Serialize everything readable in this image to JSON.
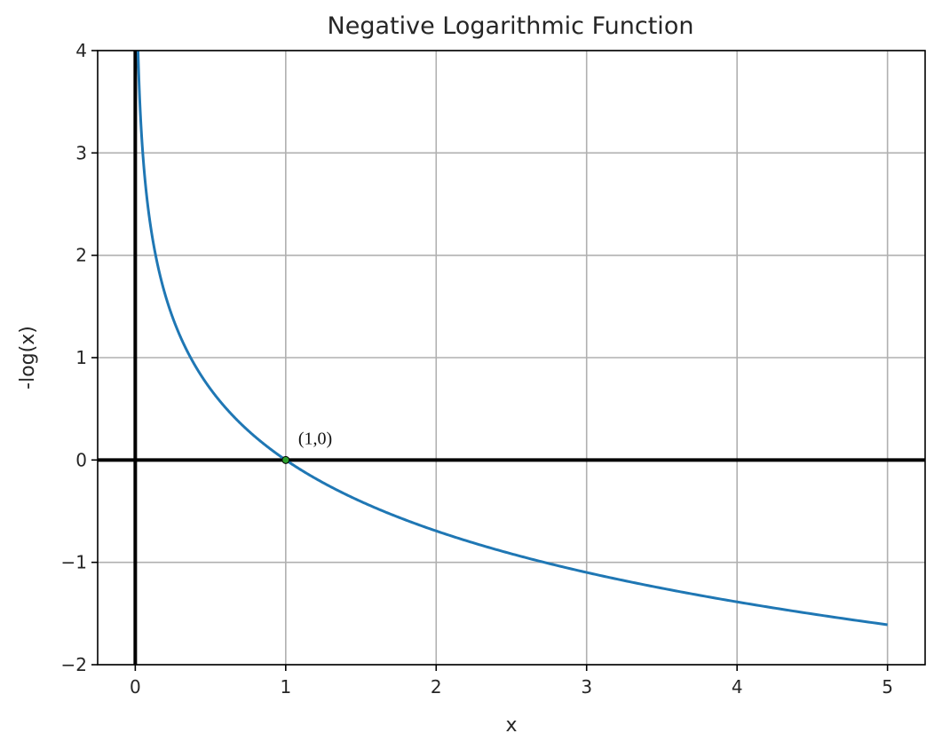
{
  "chart_data": {
    "type": "line",
    "title": "Negative Logarithmic Function",
    "xlabel": "x",
    "ylabel": "-log(x)",
    "xlim": [
      -0.25,
      5.25
    ],
    "ylim": [
      -2,
      4
    ],
    "xticks": [
      0,
      1,
      2,
      3,
      4,
      5
    ],
    "xtick_labels": [
      "0",
      "1",
      "2",
      "3",
      "4",
      "5"
    ],
    "yticks": [
      -2,
      -1,
      0,
      1,
      2,
      3,
      4
    ],
    "ytick_labels": [
      "−2",
      "−1",
      "0",
      "1",
      "2",
      "3",
      "4"
    ],
    "grid": true,
    "series": [
      {
        "function": "-ln(x)",
        "x_range": [
          0.01,
          5
        ],
        "color": "#1f77b4"
      }
    ],
    "reference_lines": [
      {
        "orientation": "horizontal",
        "value": 0,
        "color": "#000000"
      },
      {
        "orientation": "vertical",
        "value": 0,
        "color": "#000000"
      }
    ],
    "points": [
      {
        "x": 1,
        "y": 0,
        "color": "#2ca02c"
      }
    ],
    "annotations": [
      {
        "text": "(1,0)",
        "x": 1,
        "y": 0
      }
    ]
  }
}
